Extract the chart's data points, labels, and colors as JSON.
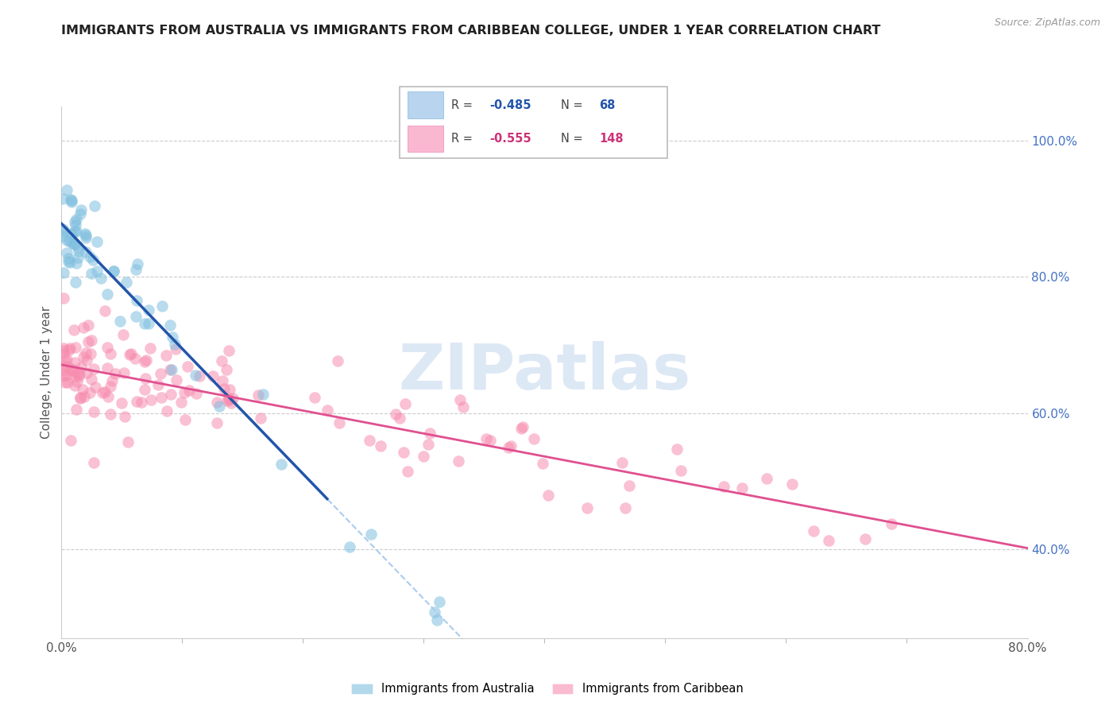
{
  "title": "IMMIGRANTS FROM AUSTRALIA VS IMMIGRANTS FROM CARIBBEAN COLLEGE, UNDER 1 YEAR CORRELATION CHART",
  "source": "Source: ZipAtlas.com",
  "ylabel": "College, Under 1 year",
  "right_yticks": [
    0.4,
    0.6,
    0.8,
    1.0
  ],
  "right_ytick_labels": [
    "40.0%",
    "60.0%",
    "80.0%",
    "100.0%"
  ],
  "xlim": [
    0.0,
    0.8
  ],
  "ylim": [
    0.27,
    1.05
  ],
  "australia_R": -0.485,
  "australia_N": 68,
  "caribbean_R": -0.555,
  "caribbean_N": 148,
  "australia_color": "#7fbfdf",
  "caribbean_color": "#f78db0",
  "australia_line_color": "#2255aa",
  "caribbean_line_color": "#e05090",
  "dashed_line_color": "#aaccee",
  "right_axis_color": "#4472c4",
  "grid_color": "#cccccc",
  "title_color": "#222222",
  "watermark_color": "#dde8f5",
  "legend_border_color": "#aaaaaa",
  "legend_aus_box_color": "#b8d4ee",
  "legend_car_box_color": "#f9b8d0",
  "legend_aus_text_color": "#2255aa",
  "legend_car_text_color": "#cc3377",
  "bottom_legend_color_aus": "#7fbfdf",
  "bottom_legend_color_car": "#f78db0"
}
